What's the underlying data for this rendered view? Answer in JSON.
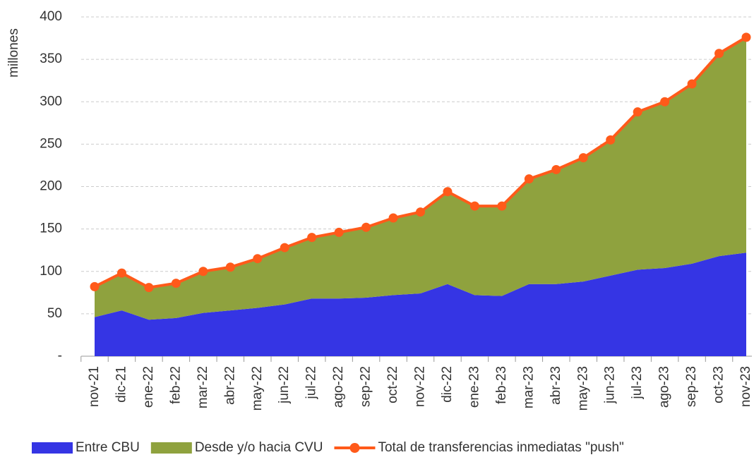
{
  "chart_data": {
    "type": "stacked-area-line",
    "y_label": "millones",
    "categories": [
      "nov-21",
      "dic-21",
      "ene-22",
      "feb-22",
      "mar-22",
      "abr-22",
      "may-22",
      "jun-22",
      "jul-22",
      "ago-22",
      "sep-22",
      "oct-22",
      "nov-22",
      "dic-22",
      "ene-23",
      "feb-23",
      "mar-23",
      "abr-23",
      "may-23",
      "jun-23",
      "jul-23",
      "ago-23",
      "sep-23",
      "oct-23",
      "nov-23"
    ],
    "series": [
      {
        "name": "Entre CBU",
        "color": "#3535e4",
        "kind": "area",
        "values": [
          46,
          54,
          43,
          45,
          51,
          54,
          57,
          61,
          68,
          68,
          69,
          72,
          74,
          85,
          72,
          71,
          85,
          85,
          88,
          95,
          102,
          104,
          109,
          118,
          122
        ]
      },
      {
        "name": "Desde y/o hacia CVU",
        "color": "#8fa23e",
        "kind": "area",
        "values": [
          36,
          44,
          38,
          41,
          49,
          51,
          58,
          67,
          72,
          78,
          83,
          91,
          96,
          109,
          105,
          106,
          124,
          135,
          146,
          160,
          186,
          196,
          212,
          239,
          254
        ]
      },
      {
        "name": "Total de transferencias inmediatas \"push\"",
        "color": "#ff5a1a",
        "kind": "line",
        "values": [
          82,
          98,
          81,
          86,
          100,
          105,
          115,
          128,
          140,
          146,
          152,
          163,
          170,
          194,
          177,
          177,
          209,
          220,
          234,
          255,
          288,
          300,
          321,
          357,
          376
        ]
      }
    ],
    "ylim": [
      0,
      400
    ],
    "yticks": [
      {
        "value": 0,
        "label": "-"
      },
      50,
      100,
      150,
      200,
      250,
      300,
      350,
      400
    ],
    "grid": true
  }
}
